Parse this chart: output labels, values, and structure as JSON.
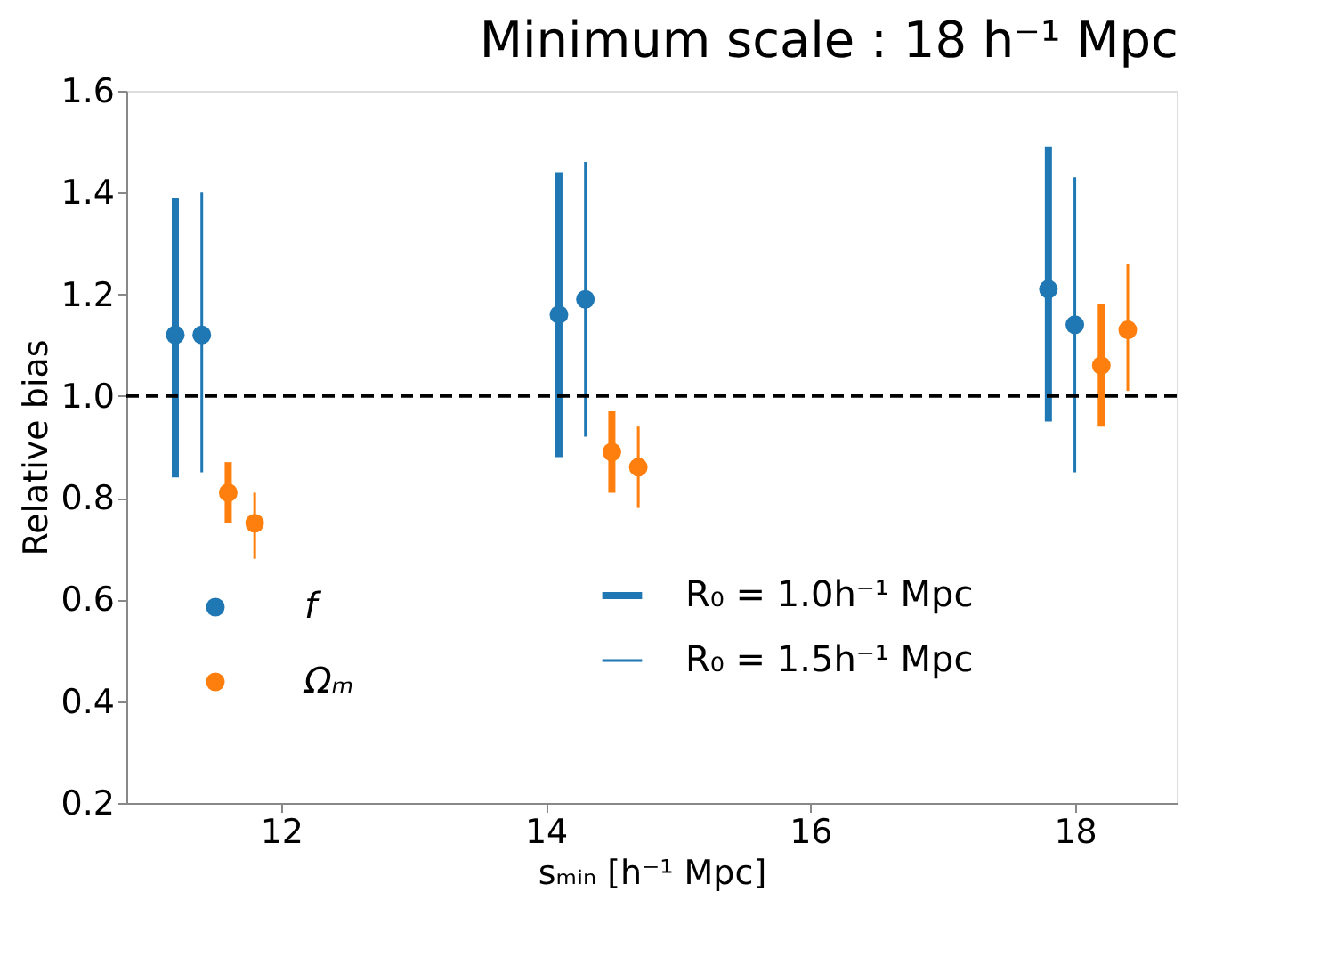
{
  "chart_data": {
    "type": "scatter",
    "title": "Minimum scale : 18 h⁻¹ Mpc",
    "xlabel": "sₘᵢₙ [h⁻¹ Mpc]",
    "ylabel": "Relative bias",
    "series": [
      {
        "name": "f",
        "color": "#1f77b4",
        "x": [
          11.2,
          14.1,
          17.8
        ],
        "values": [
          1.12,
          1.16,
          1.21
        ],
        "errors": [
          [
            0.84,
            1.39
          ],
          [
            0.88,
            1.44
          ],
          [
            0.95,
            1.49
          ]
        ]
      },
      {
        "color": "#1f77b4",
        "x": [
          11.4,
          14.3,
          18.0
        ],
        "values": [
          1.12,
          1.19,
          1.14
        ],
        "errors": [
          [
            0.85,
            1.4
          ],
          [
            0.92,
            1.46
          ],
          [
            0.85,
            1.43
          ]
        ]
      },
      {
        "name": "Ωₘ",
        "color": "#ff7f0e",
        "x": [
          11.6,
          14.5,
          18.2
        ],
        "values": [
          0.81,
          0.89,
          1.06
        ],
        "errors": [
          [
            0.75,
            0.87
          ],
          [
            0.81,
            0.97
          ],
          [
            0.94,
            1.18
          ]
        ]
      },
      {
        "color": "#ff7f0e",
        "x": [
          11.8,
          14.7,
          18.4
        ],
        "values": [
          0.75,
          0.86,
          1.13
        ],
        "errors": [
          [
            0.68,
            0.81
          ],
          [
            0.78,
            0.94
          ],
          [
            1.01,
            1.26
          ]
        ]
      }
    ],
    "annotations": [
      "R₀ = 1.0h⁻¹ Mpc",
      "R₀ = 1.5h⁻¹ Mpc"
    ],
    "ref_lines": [
      {
        "axis": "y",
        "value": 1.0,
        "color": "#000000",
        "line_style": "dashed"
      }
    ],
    "xlim": [
      10.83,
      18.77
    ],
    "xticks": [
      12,
      14,
      16,
      18
    ],
    "ylim": [
      0.2,
      1.6
    ],
    "yticks": [
      0.2,
      0.4,
      0.6,
      0.8,
      {
        "value": 1.0,
        "label": "1.0"
      },
      1.2,
      1.4,
      1.6
    ],
    "grid": false,
    "legend": "bottom left",
    "marker": "circle"
  }
}
